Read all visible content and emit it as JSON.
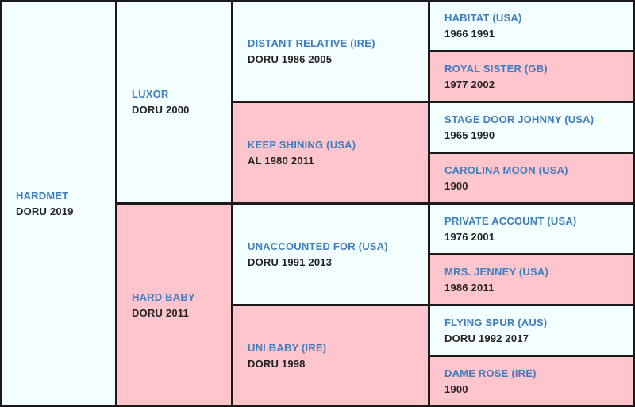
{
  "horse": {
    "name": "HARDMET",
    "info": "DORU 2019"
  },
  "gen1": [
    {
      "name": "LUXOR",
      "info": "DORU 2000"
    },
    {
      "name": "HARD BABY",
      "info": "DORU 2011"
    }
  ],
  "gen2": [
    {
      "name": "DISTANT RELATIVE (IRE)",
      "info": "DORU 1986 2005"
    },
    {
      "name": "KEEP SHINING (USA)",
      "info": "AL 1980 2011"
    },
    {
      "name": "UNACCOUNTED FOR (USA)",
      "info": "DORU 1991 2013"
    },
    {
      "name": "UNI BABY (IRE)",
      "info": "DORU 1998"
    }
  ],
  "gen3": [
    {
      "name": "HABITAT (USA)",
      "info": "1966 1991"
    },
    {
      "name": "ROYAL SISTER (GB)",
      "info": "1977 2002"
    },
    {
      "name": "STAGE DOOR JOHNNY (USA)",
      "info": "1965 1990"
    },
    {
      "name": "CAROLINA MOON (USA)",
      "info": "1900"
    },
    {
      "name": "PRIVATE ACCOUNT (USA)",
      "info": "1976 2001"
    },
    {
      "name": "MRS. JENNEY (USA)",
      "info": "1986 2011"
    },
    {
      "name": "FLYING SPUR (AUS)",
      "info": "DORU 1992 2017"
    },
    {
      "name": "DAME ROSE (IRE)",
      "info": "1900"
    }
  ],
  "colors": {
    "sire_bg": "#f2feff",
    "dam_bg": "#ffc5cc",
    "name_text": "#3f7ec0",
    "info_text": "#222222",
    "border": "#1a1a1a"
  }
}
